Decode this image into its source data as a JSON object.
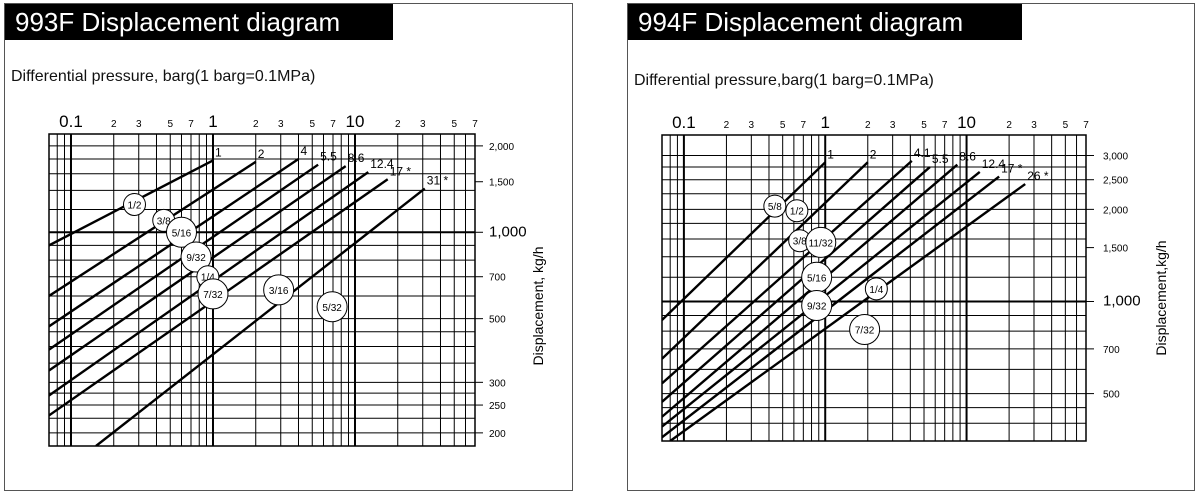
{
  "chart_data": [
    {
      "type": "line",
      "title": "993F Displacement diagram",
      "xlabel": "Differential pressure, barg(1 barg=0.1MPa)",
      "ylabel": "Displacement, kg/h",
      "x_scale": "log",
      "y_scale": "log",
      "xlim": [
        0.07,
        70
      ],
      "ylim": [
        180,
        2200
      ],
      "x_ticklabels": [
        {
          "value": 0.1,
          "label": "0.1",
          "major": true
        },
        {
          "value": 0.2,
          "label": "2"
        },
        {
          "value": 0.3,
          "label": "3"
        },
        {
          "value": 0.5,
          "label": "5"
        },
        {
          "value": 0.7,
          "label": "7"
        },
        {
          "value": 1,
          "label": "1",
          "major": true
        },
        {
          "value": 2,
          "label": "2"
        },
        {
          "value": 3,
          "label": "3"
        },
        {
          "value": 5,
          "label": "5"
        },
        {
          "value": 7,
          "label": "7"
        },
        {
          "value": 10,
          "label": "10",
          "major": true
        },
        {
          "value": 20,
          "label": "2"
        },
        {
          "value": 30,
          "label": "3"
        },
        {
          "value": 50,
          "label": "5"
        },
        {
          "value": 70,
          "label": "7"
        }
      ],
      "y_ticklabels": [
        {
          "value": 2000,
          "label": "2,000"
        },
        {
          "value": 1500,
          "label": "1,500"
        },
        {
          "value": 1000,
          "label": "1,000",
          "major": true
        },
        {
          "value": 700,
          "label": "700"
        },
        {
          "value": 500,
          "label": "500"
        },
        {
          "value": 300,
          "label": "300"
        },
        {
          "value": 250,
          "label": "250"
        },
        {
          "value": 200,
          "label": "200"
        }
      ],
      "limit_labels": [
        {
          "label": "1",
          "x": 1.0
        },
        {
          "label": "2",
          "x": 2.0
        },
        {
          "label": "4",
          "x": 4.0
        },
        {
          "label": "5.5",
          "x": 5.5
        },
        {
          "label": "8.6",
          "x": 8.6
        },
        {
          "label": "12.4",
          "x": 12.4
        },
        {
          "label": "17",
          "x": 17,
          "star": "*"
        },
        {
          "label": "31",
          "x": 31,
          "star": "*"
        }
      ],
      "series": [
        {
          "name": "1/2",
          "x": [
            0.07,
            1.0
          ],
          "y": [
            900,
            1780
          ]
        },
        {
          "name": "3/8",
          "x": [
            0.07,
            2.0
          ],
          "y": [
            600,
            1760
          ]
        },
        {
          "name": "5/16",
          "x": [
            0.07,
            4.0
          ],
          "y": [
            470,
            1800
          ]
        },
        {
          "name": "9/32",
          "x": [
            0.07,
            5.5
          ],
          "y": [
            390,
            1720
          ]
        },
        {
          "name": "1/4",
          "x": [
            0.07,
            8.6
          ],
          "y": [
            330,
            1700
          ]
        },
        {
          "name": "7/32",
          "x": [
            0.07,
            12.4
          ],
          "y": [
            270,
            1620
          ]
        },
        {
          "name": "3/16",
          "x": [
            0.07,
            17
          ],
          "y": [
            230,
            1530
          ]
        },
        {
          "name": "5/32",
          "x": [
            0.15,
            31
          ],
          "y": [
            180,
            1420
          ]
        }
      ],
      "series_label_positions": [
        {
          "label": "1/2",
          "x": 0.28,
          "y": 1250
        },
        {
          "label": "3/8",
          "x": 0.45,
          "y": 1100
        },
        {
          "label": "5/16",
          "x": 0.6,
          "y": 1000
        },
        {
          "label": "9/32",
          "x": 0.76,
          "y": 820
        },
        {
          "label": "1/4",
          "x": 0.92,
          "y": 700
        },
        {
          "label": "7/32",
          "x": 1.0,
          "y": 610
        },
        {
          "label": "3/16",
          "x": 2.9,
          "y": 630
        },
        {
          "label": "5/32",
          "x": 6.9,
          "y": 550
        }
      ],
      "grid": true
    },
    {
      "type": "line",
      "title": "994F Displacement diagram",
      "xlabel": "Differential pressure,barg(1 barg=0.1MPa)",
      "ylabel": "Displacement,kg/h",
      "x_scale": "log",
      "y_scale": "log",
      "xlim": [
        0.07,
        70
      ],
      "ylim": [
        350,
        3500
      ],
      "x_ticklabels": [
        {
          "value": 0.1,
          "label": "0.1",
          "major": true
        },
        {
          "value": 0.2,
          "label": "2"
        },
        {
          "value": 0.3,
          "label": "3"
        },
        {
          "value": 0.5,
          "label": "5"
        },
        {
          "value": 0.7,
          "label": "7"
        },
        {
          "value": 1,
          "label": "1",
          "major": true
        },
        {
          "value": 2,
          "label": "2"
        },
        {
          "value": 3,
          "label": "3"
        },
        {
          "value": 5,
          "label": "5"
        },
        {
          "value": 7,
          "label": "7"
        },
        {
          "value": 10,
          "label": "10",
          "major": true
        },
        {
          "value": 20,
          "label": "2"
        },
        {
          "value": 30,
          "label": "3"
        },
        {
          "value": 50,
          "label": "5"
        },
        {
          "value": 70,
          "label": "7"
        }
      ],
      "y_ticklabels": [
        {
          "value": 3000,
          "label": "3,000"
        },
        {
          "value": 2500,
          "label": "2,500"
        },
        {
          "value": 2000,
          "label": "2,000"
        },
        {
          "value": 1500,
          "label": "1,500"
        },
        {
          "value": 1000,
          "label": "1,000",
          "major": true
        },
        {
          "value": 700,
          "label": "700"
        },
        {
          "value": 500,
          "label": "500"
        }
      ],
      "limit_labels": [
        {
          "label": "1",
          "x": 1.0
        },
        {
          "label": "2",
          "x": 2.0
        },
        {
          "label": "4.1",
          "x": 4.1
        },
        {
          "label": "5.5",
          "x": 5.5
        },
        {
          "label": "8.6",
          "x": 8.6
        },
        {
          "label": "12.4",
          "x": 12.4
        },
        {
          "label": "17",
          "x": 17,
          "star": "*"
        },
        {
          "label": "26",
          "x": 26,
          "star": "*"
        }
      ],
      "series": [
        {
          "name": "5/8",
          "x": [
            0.07,
            1.0
          ],
          "y": [
            870,
            2850
          ]
        },
        {
          "name": "1/2",
          "x": [
            0.07,
            2.0
          ],
          "y": [
            650,
            2850
          ]
        },
        {
          "name": "3/8",
          "x": [
            0.07,
            4.1
          ],
          "y": [
            540,
            2880
          ]
        },
        {
          "name": "11/32",
          "x": [
            0.07,
            5.5
          ],
          "y": [
            470,
            2750
          ]
        },
        {
          "name": "5/16",
          "x": [
            0.07,
            8.6
          ],
          "y": [
            420,
            2800
          ]
        },
        {
          "name": "9/32",
          "x": [
            0.07,
            12.4
          ],
          "y": [
            390,
            2650
          ]
        },
        {
          "name": "1/4",
          "x": [
            0.07,
            17
          ],
          "y": [
            360,
            2560
          ]
        },
        {
          "name": "7/32",
          "x": [
            0.08,
            26
          ],
          "y": [
            350,
            2420
          ]
        }
      ],
      "series_label_positions": [
        {
          "label": "5/8",
          "x": 0.44,
          "y": 2050
        },
        {
          "label": "1/2",
          "x": 0.63,
          "y": 1980
        },
        {
          "label": "3/8",
          "x": 0.66,
          "y": 1580
        },
        {
          "label": "11/32",
          "x": 0.93,
          "y": 1560
        },
        {
          "label": "5/16",
          "x": 0.87,
          "y": 1200
        },
        {
          "label": "9/32",
          "x": 0.87,
          "y": 970
        },
        {
          "label": "1/4",
          "x": 2.3,
          "y": 1100
        },
        {
          "label": "7/32",
          "x": 1.9,
          "y": 810
        }
      ],
      "grid": true
    }
  ]
}
